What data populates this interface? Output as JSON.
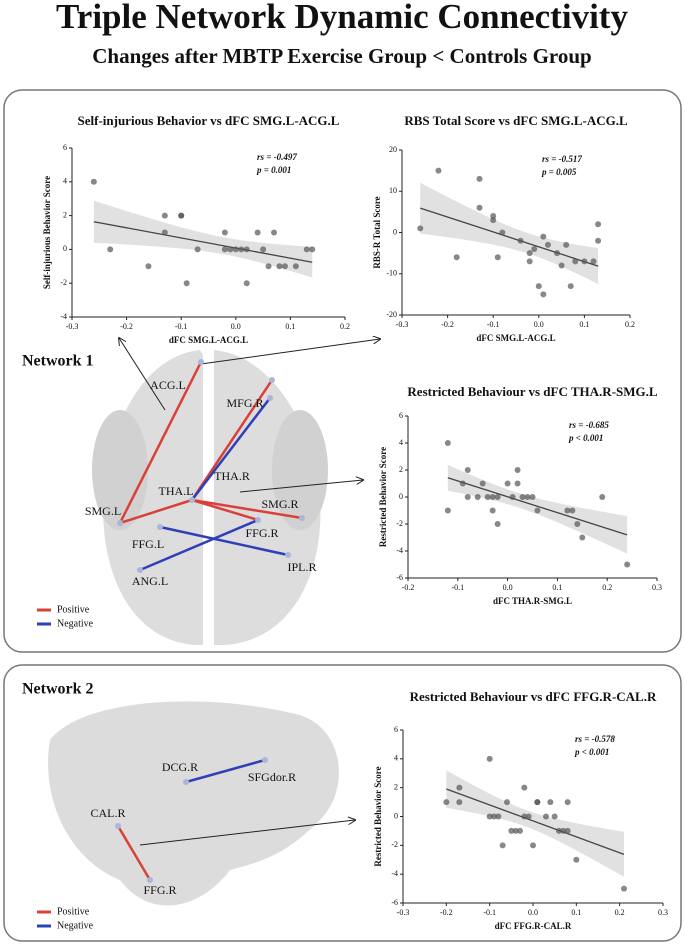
{
  "title": "Triple Network Dynamic Connectivity",
  "subtitle": "Changes after MBTP Exercise Group < Controls Group",
  "networks": [
    {
      "label": "Network 1",
      "nodes": [
        "ACG.L",
        "MFG.R",
        "THA.R",
        "THA.L",
        "SMG.L",
        "SMG.R",
        "FFG.L",
        "FFG.R",
        "IPL.R",
        "ANG.L"
      ],
      "legend": [
        {
          "name": "Positive",
          "color": "#d9403a"
        },
        {
          "name": "Negative",
          "color": "#2f3fb8"
        }
      ]
    },
    {
      "label": "Network 2",
      "nodes": [
        "DCG.R",
        "SFGdor.R",
        "CAL.R",
        "FFG.R"
      ],
      "legend": [
        {
          "name": "Positive",
          "color": "#d9403a"
        },
        {
          "name": "Negative",
          "color": "#2f3fb8"
        }
      ]
    }
  ],
  "chart_data": [
    {
      "type": "scatter",
      "title": "Self-injurious Behavior vs dFC SMG.L-ACG.L",
      "x_label": "dFC SMG.L-ACG.L",
      "y_label": "Self-injurious Behavior Score",
      "annotations": [
        "rs = -0.497",
        "p = 0.001"
      ],
      "x": [
        -0.26,
        -0.23,
        -0.16,
        -0.13,
        -0.13,
        -0.1,
        -0.1,
        -0.09,
        -0.07,
        -0.02,
        -0.02,
        -0.01,
        0.0,
        0.01,
        0.02,
        0.02,
        0.04,
        0.05,
        0.06,
        0.07,
        0.08,
        0.09,
        0.11,
        0.13,
        0.14
      ],
      "values": [
        4,
        0,
        -1,
        2,
        1,
        2,
        2,
        -2,
        0,
        1,
        0,
        0,
        0,
        0,
        0,
        -2,
        1,
        0,
        -1,
        1,
        -1,
        -1,
        -1,
        0,
        0
      ],
      "color": "#555555",
      "xlim": [
        -0.3,
        0.2
      ],
      "xticks": [
        -0.3,
        -0.2,
        -0.1,
        {
          "value": 0,
          "label": "0.0"
        },
        0.1,
        0.2
      ],
      "ylim": [
        -4,
        6
      ],
      "yticks": [
        -4,
        -2,
        0,
        2,
        4,
        6
      ]
    },
    {
      "type": "scatter",
      "title": "RBS Total Score vs dFC SMG.L-ACG.L",
      "x_label": "dFC SMG.L-ACG.L",
      "y_label": "RBS-R Total Score",
      "annotations": [
        "rs = -0.517",
        "p = 0.005"
      ],
      "x": [
        -0.26,
        -0.22,
        -0.18,
        -0.13,
        -0.13,
        -0.1,
        -0.1,
        -0.09,
        -0.08,
        -0.04,
        -0.02,
        -0.02,
        -0.01,
        0.0,
        0.01,
        0.01,
        0.02,
        0.04,
        0.05,
        0.06,
        0.07,
        0.08,
        0.1,
        0.12,
        0.13,
        0.13
      ],
      "values": [
        1,
        15,
        -6,
        13,
        6,
        4,
        3,
        -6,
        0,
        -2,
        -7,
        -5,
        -4,
        -13,
        -1,
        -15,
        -3,
        -5,
        -8,
        -3,
        -13,
        -7,
        -7,
        -7,
        2,
        -2
      ],
      "color": "#555555",
      "xlim": [
        -0.3,
        0.2
      ],
      "xticks": [
        -0.3,
        -0.2,
        -0.1,
        {
          "value": 0,
          "label": "0.0"
        },
        0.1,
        0.2
      ],
      "ylim": [
        -20,
        20
      ],
      "yticks": [
        -20,
        -10,
        0,
        10,
        20
      ]
    },
    {
      "type": "scatter",
      "title": "Restricted Behaviour vs dFC THA.R-SMG.L",
      "x_label": "dFC THA.R-SMG.L",
      "y_label": "Restricted Behavior Score",
      "annotations": [
        "rs = -0.685",
        "p < 0.001"
      ],
      "x": [
        -0.12,
        -0.12,
        -0.09,
        -0.08,
        -0.08,
        -0.06,
        -0.05,
        -0.04,
        -0.03,
        -0.03,
        -0.02,
        -0.02,
        0.0,
        0.01,
        0.02,
        0.02,
        0.03,
        0.04,
        0.05,
        0.06,
        0.12,
        0.13,
        0.14,
        0.15,
        0.19,
        0.24
      ],
      "values": [
        4,
        -1,
        1,
        2,
        0,
        0,
        1,
        0,
        0,
        -1,
        -2,
        0,
        1,
        0,
        1,
        2,
        0,
        0,
        0,
        -1,
        -1,
        -1,
        -2,
        -3,
        0,
        -5
      ],
      "color": "#555555",
      "xlim": [
        -0.2,
        0.3
      ],
      "xticks": [
        -0.2,
        -0.1,
        {
          "value": 0,
          "label": "0.0"
        },
        0.1,
        0.2,
        0.3
      ],
      "ylim": [
        -6,
        6
      ],
      "yticks": [
        -6,
        -4,
        -2,
        0,
        2,
        4,
        6
      ]
    },
    {
      "type": "scatter",
      "title": "Restricted Behaviour vs dFC FFG.R-CAL.R",
      "x_label": "dFC FFG.R-CAL.R",
      "y_label": "Restricted Behavior Score",
      "annotations": [
        "rs = -0.578",
        "p < 0.001"
      ],
      "x": [
        -0.2,
        -0.17,
        -0.17,
        -0.1,
        -0.1,
        -0.09,
        -0.08,
        -0.07,
        -0.06,
        -0.05,
        -0.04,
        -0.03,
        -0.02,
        -0.02,
        -0.01,
        0.0,
        0.01,
        0.01,
        0.03,
        0.04,
        0.05,
        0.06,
        0.07,
        0.08,
        0.08,
        0.1,
        0.21
      ],
      "values": [
        1,
        2,
        1,
        4,
        0,
        0,
        0,
        -2,
        1,
        -1,
        -1,
        -1,
        2,
        0,
        0,
        -2,
        1,
        1,
        0,
        1,
        0,
        -1,
        -1,
        -1,
        1,
        -3,
        -5
      ],
      "color": "#555555",
      "xlim": [
        -0.3,
        0.3
      ],
      "xticks": [
        -0.3,
        -0.2,
        -0.1,
        {
          "value": 0,
          "label": "0.0"
        },
        0.1,
        0.2,
        0.3
      ],
      "ylim": [
        -6,
        6
      ],
      "yticks": [
        -6,
        -4,
        -2,
        0,
        2,
        4,
        6
      ]
    }
  ]
}
